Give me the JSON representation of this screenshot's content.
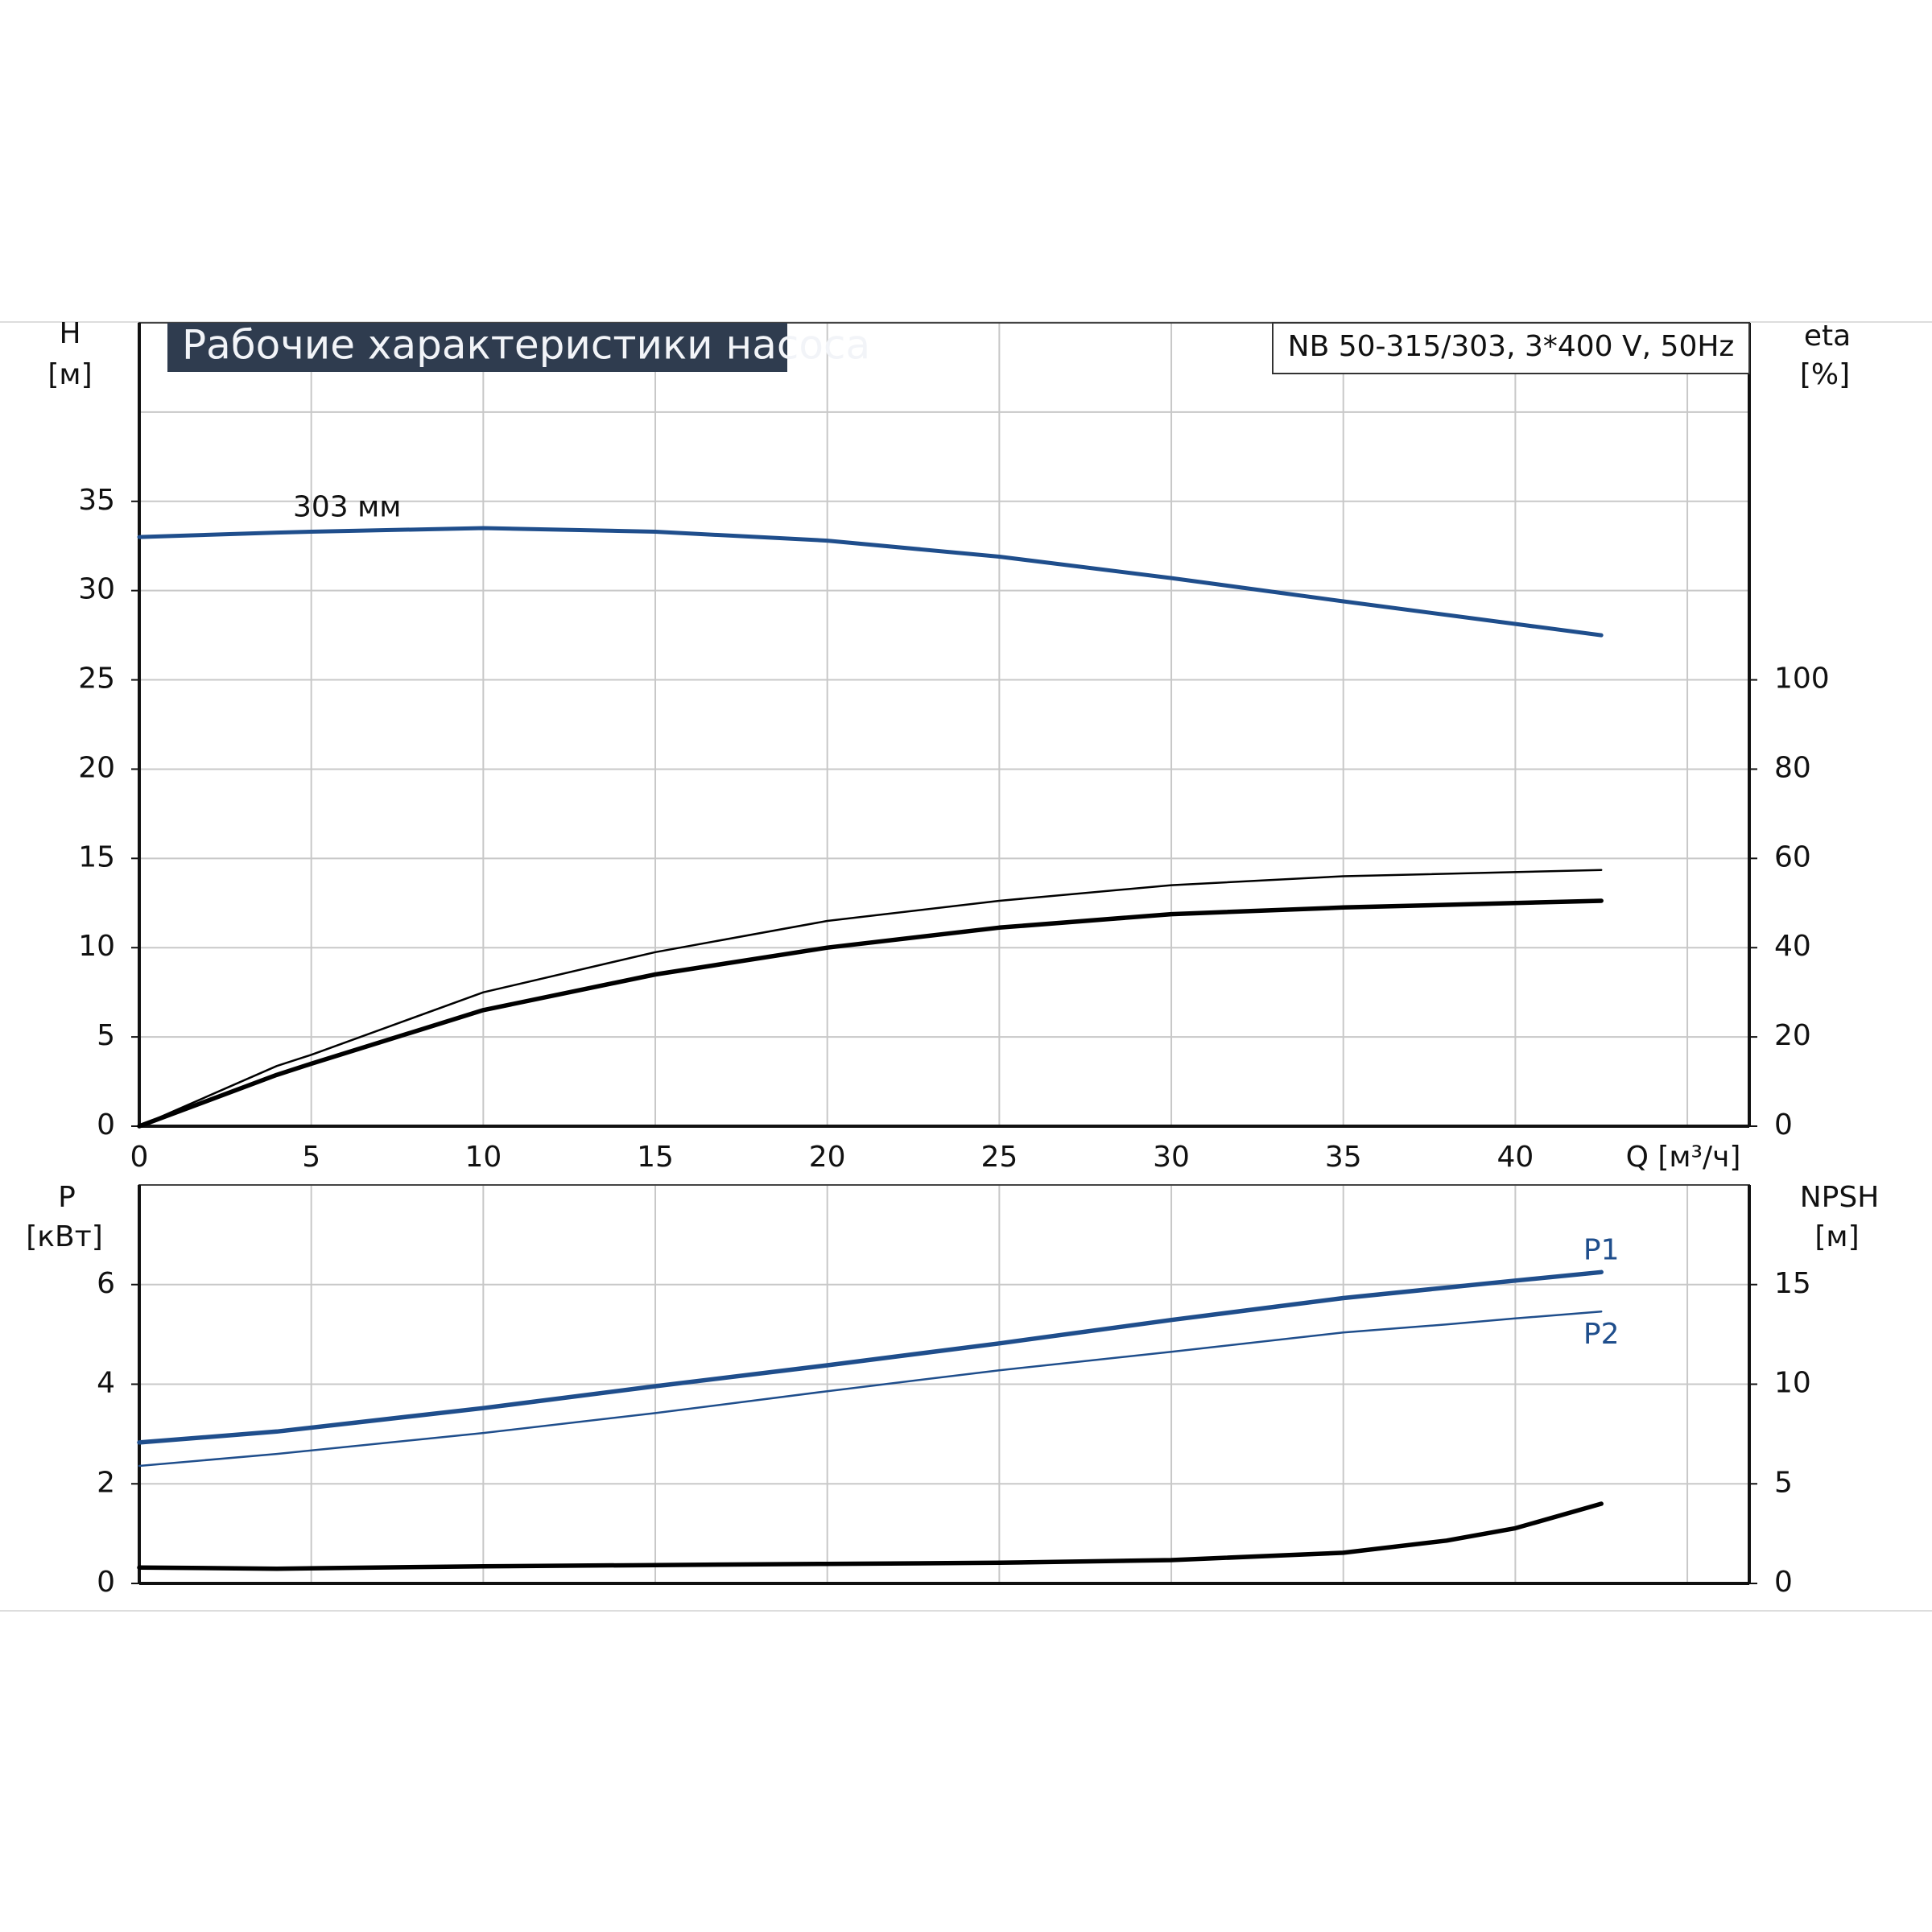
{
  "chart_data": [
    {
      "type": "line",
      "title": "Рабочие характеристики насоса",
      "subtitle": "NB 50-315/303, 3*400 V, 50Hz",
      "ylabel": "H",
      "yunit": "[м]",
      "y2label": "eta",
      "y2unit": "[%]",
      "xlabel": "Q [м³/ч]",
      "xlim": [
        0,
        46.8
      ],
      "xticks": [
        0,
        5,
        10,
        15,
        20,
        25,
        30,
        35,
        40
      ],
      "xgrid": [
        0,
        5,
        10,
        15,
        20,
        25,
        30,
        35,
        40,
        45
      ],
      "ylim": [
        0,
        45
      ],
      "yticks": [
        0,
        5,
        10,
        15,
        20,
        25,
        30,
        35
      ],
      "ygrid": [
        0,
        5,
        10,
        15,
        20,
        25,
        30,
        35,
        40
      ],
      "y2lim": [
        0,
        180
      ],
      "y2ticks": [
        0,
        20,
        40,
        60,
        80,
        100
      ],
      "grid": true,
      "x": [
        0,
        4,
        5,
        10,
        15,
        20,
        25,
        30,
        35,
        42.5
      ],
      "series": [
        {
          "name": "303 мм",
          "color": "#1f4e8c",
          "values": [
            33.0,
            33.25,
            33.3,
            33.5,
            33.3,
            32.8,
            31.9,
            30.7,
            29.4,
            27.5
          ]
        },
        {
          "color": "#000000",
          "axis": "y2",
          "values": [
            0,
            13.5,
            16,
            30,
            39,
            46,
            50.5,
            54,
            56,
            57.4
          ]
        },
        {
          "color": "#000000",
          "axis": "y2",
          "values": [
            0,
            11.5,
            14,
            26,
            34,
            40,
            44.5,
            47.5,
            49,
            50.5
          ]
        }
      ]
    },
    {
      "type": "line",
      "ylabel": "P",
      "yunit": "[кВт]",
      "y2label": "NPSH",
      "y2unit": "[м]",
      "xlim": [
        0,
        46.8
      ],
      "xgrid": [
        0,
        5,
        10,
        15,
        20,
        25,
        30,
        35,
        40,
        45
      ],
      "ylim": [
        0,
        8
      ],
      "yticks": [
        0,
        2,
        4,
        6
      ],
      "ygrid": [
        2,
        4,
        6
      ],
      "y2lim": [
        0,
        20
      ],
      "y2ticks": [
        0,
        5,
        10,
        15
      ],
      "grid": true,
      "x": [
        0,
        4,
        10,
        15,
        20,
        25,
        30,
        35,
        38,
        40,
        42.5
      ],
      "series": [
        {
          "name": "P1",
          "color": "#1f4e8c",
          "values": [
            2.83,
            3.05,
            3.52,
            3.96,
            4.38,
            4.82,
            5.29,
            5.73,
            5.94,
            6.08,
            6.25
          ]
        },
        {
          "name": "P2",
          "color": "#1f4e8c",
          "values": [
            2.36,
            2.6,
            3.02,
            3.42,
            3.86,
            4.28,
            4.65,
            5.04,
            5.2,
            5.32,
            5.46
          ]
        },
        {
          "color": "#000000",
          "axis": "y2",
          "values": [
            0.8,
            0.74,
            0.86,
            0.92,
            0.98,
            1.04,
            1.17,
            1.54,
            2.15,
            2.77,
            4.0
          ]
        }
      ]
    }
  ]
}
